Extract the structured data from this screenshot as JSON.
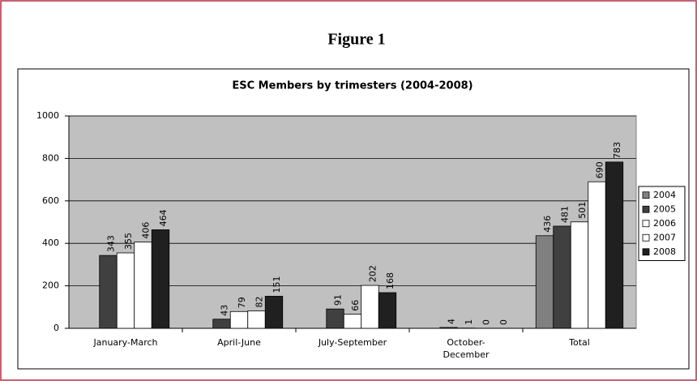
{
  "figure_title": "Figure 1",
  "chart_data": {
    "type": "bar",
    "title": "ESC Members by trimesters (2004-2008)",
    "categories": [
      "January-March",
      "April-June",
      "July-September",
      "October-December",
      "Total"
    ],
    "series": [
      {
        "name": "2004",
        "color": "#808080",
        "values": [
          null,
          null,
          null,
          null,
          436
        ]
      },
      {
        "name": "2005",
        "color": "#404040",
        "values": [
          343,
          43,
          91,
          4,
          481
        ]
      },
      {
        "name": "2006",
        "color": "#ffffff",
        "values": [
          355,
          79,
          66,
          1,
          501
        ]
      },
      {
        "name": "2007",
        "color": "#ffffff",
        "values": [
          406,
          82,
          202,
          0,
          690
        ]
      },
      {
        "name": "2008",
        "color": "#202020",
        "values": [
          464,
          151,
          168,
          0,
          783
        ]
      }
    ],
    "ylim": [
      0,
      1000
    ],
    "yticks": [
      0,
      200,
      400,
      600,
      800,
      1000
    ],
    "grid": true,
    "legend": "right"
  }
}
